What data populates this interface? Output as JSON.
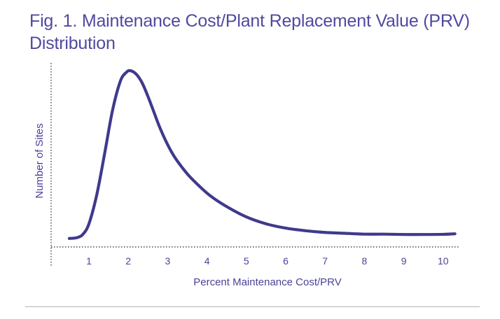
{
  "figure": {
    "title": "Fig. 1. Maintenance Cost/Plant Replacement Value (PRV) Distribution"
  },
  "colors": {
    "title": "#5049a0",
    "curve": "#3f3a8c",
    "axis_text": "#4a4397",
    "axis_line": "#222222",
    "rule": "#b3b3b3"
  },
  "chart_data": {
    "type": "line",
    "title": "Fig. 1. Maintenance Cost/Plant Replacement Value (PRV) Distribution",
    "xlabel": "Percent Maintenance Cost/PRV",
    "ylabel": "Number of Sites",
    "xlim": [
      0.2,
      10.5
    ],
    "ylim": [
      0,
      100
    ],
    "x_ticks": [
      1,
      2,
      3,
      4,
      5,
      6,
      7,
      8,
      9,
      10
    ],
    "y_ticks_shown": false,
    "grid": false,
    "axes_style": "dotted",
    "series": [
      {
        "x": [
          0.5,
          0.7,
          0.85,
          1.0,
          1.2,
          1.4,
          1.6,
          1.8,
          1.95,
          2.05,
          2.2,
          2.35,
          2.5,
          2.65,
          2.8,
          3.0,
          3.2,
          3.5,
          3.8,
          4.1,
          4.5,
          5.0,
          5.5,
          6.0,
          6.5,
          7.0,
          7.5,
          8.0,
          8.5,
          9.0,
          9.5,
          10.0,
          10.3
        ],
        "y": [
          2.5,
          3,
          5,
          11,
          28,
          52,
          77,
          94,
          99,
          100,
          98,
          93,
          85,
          76,
          67,
          57,
          49,
          40,
          33,
          27,
          21,
          15,
          11,
          8.5,
          7,
          6,
          5.5,
          5,
          5,
          4.8,
          4.8,
          4.9,
          5.2
        ]
      }
    ]
  }
}
